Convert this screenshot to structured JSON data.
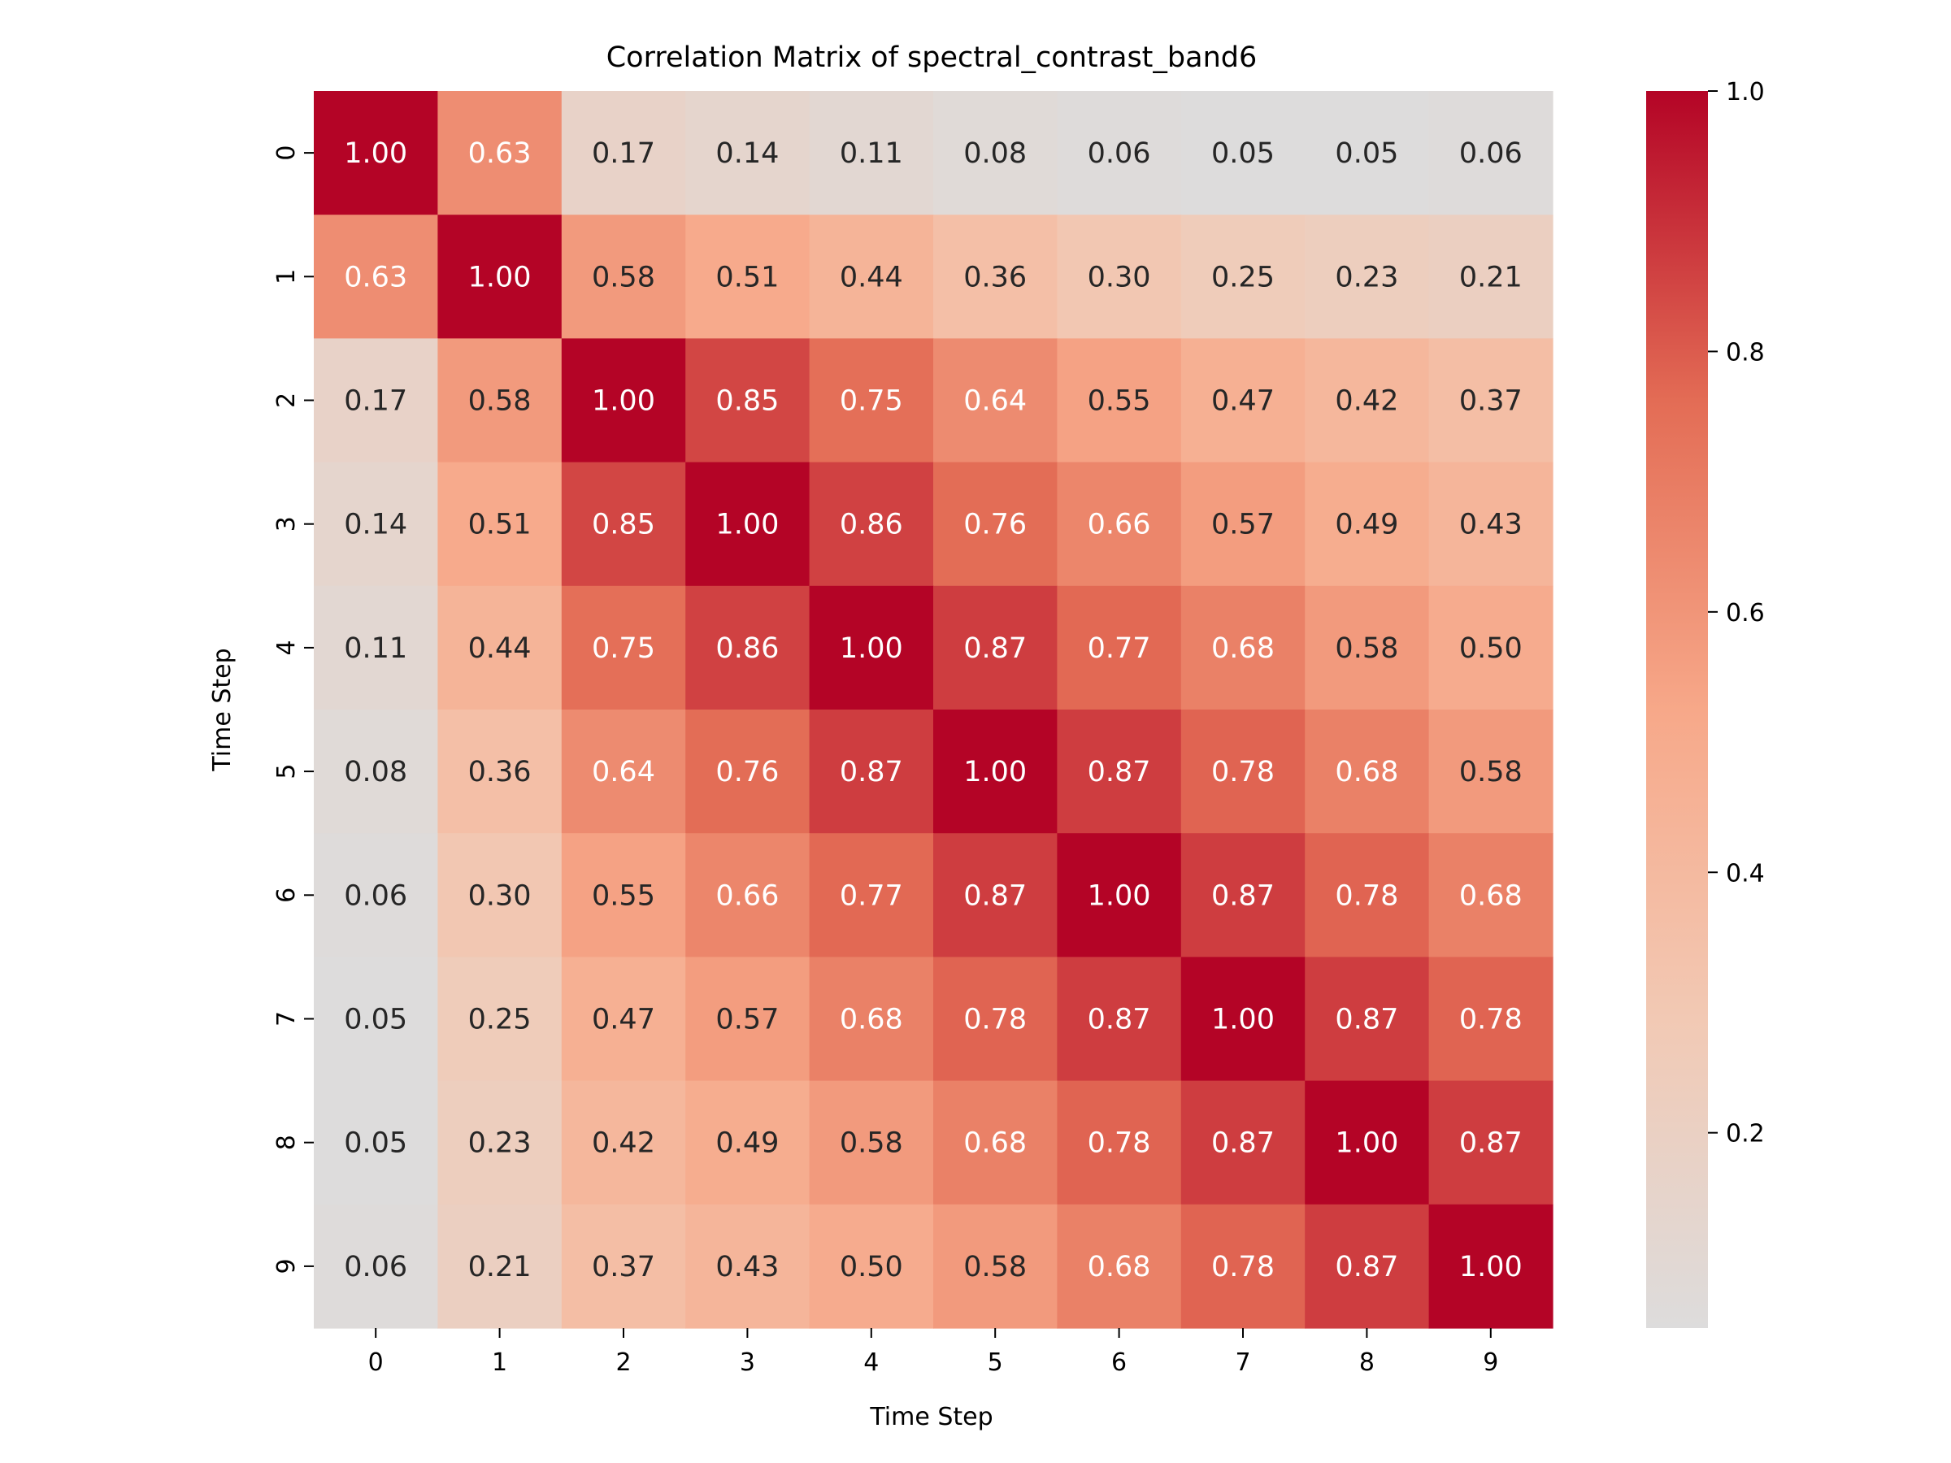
{
  "chart_data": {
    "type": "heatmap",
    "title": "Correlation Matrix of spectral_contrast_band6",
    "xlabel": "Time Step",
    "ylabel": "Time Step",
    "x_categories": [
      "0",
      "1",
      "2",
      "3",
      "4",
      "5",
      "6",
      "7",
      "8",
      "9"
    ],
    "y_categories": [
      "0",
      "1",
      "2",
      "3",
      "4",
      "5",
      "6",
      "7",
      "8",
      "9"
    ],
    "values": [
      [
        1.0,
        0.63,
        0.17,
        0.14,
        0.11,
        0.08,
        0.06,
        0.05,
        0.05,
        0.06
      ],
      [
        0.63,
        1.0,
        0.58,
        0.51,
        0.44,
        0.36,
        0.3,
        0.25,
        0.23,
        0.21
      ],
      [
        0.17,
        0.58,
        1.0,
        0.85,
        0.75,
        0.64,
        0.55,
        0.47,
        0.42,
        0.37
      ],
      [
        0.14,
        0.51,
        0.85,
        1.0,
        0.86,
        0.76,
        0.66,
        0.57,
        0.49,
        0.43
      ],
      [
        0.11,
        0.44,
        0.75,
        0.86,
        1.0,
        0.87,
        0.77,
        0.68,
        0.58,
        0.5
      ],
      [
        0.08,
        0.36,
        0.64,
        0.76,
        0.87,
        1.0,
        0.87,
        0.78,
        0.68,
        0.58
      ],
      [
        0.06,
        0.3,
        0.55,
        0.66,
        0.77,
        0.87,
        1.0,
        0.87,
        0.78,
        0.68
      ],
      [
        0.05,
        0.25,
        0.47,
        0.57,
        0.68,
        0.78,
        0.87,
        1.0,
        0.87,
        0.78
      ],
      [
        0.05,
        0.23,
        0.42,
        0.49,
        0.58,
        0.68,
        0.78,
        0.87,
        1.0,
        0.87
      ],
      [
        0.06,
        0.21,
        0.37,
        0.43,
        0.5,
        0.58,
        0.68,
        0.78,
        0.87,
        1.0
      ]
    ],
    "annotation_format": "0.00",
    "colorscale": {
      "name": "coolwarm (upper half)",
      "vmin": 0.05,
      "vmax": 1.0,
      "ticks": [
        "0.2",
        "0.4",
        "0.6",
        "0.8",
        "1.0"
      ],
      "colors": [
        "#dddcdc",
        "#f2c9b4",
        "#f7a889",
        "#e36c55",
        "#b40426"
      ]
    },
    "grid": false,
    "colorbar_position": "right"
  }
}
